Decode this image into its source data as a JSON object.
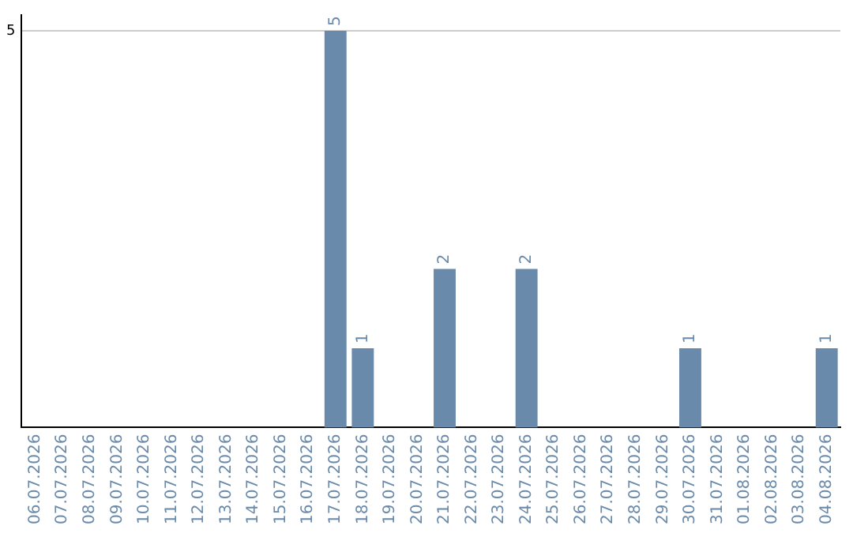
{
  "chart_data": {
    "type": "bar",
    "categories": [
      "06.07.2026",
      "07.07.2026",
      "08.07.2026",
      "09.07.2026",
      "10.07.2026",
      "11.07.2026",
      "12.07.2026",
      "13.07.2026",
      "14.07.2026",
      "15.07.2026",
      "16.07.2026",
      "17.07.2026",
      "18.07.2026",
      "19.07.2026",
      "20.07.2026",
      "21.07.2026",
      "22.07.2026",
      "23.07.2026",
      "24.07.2026",
      "25.07.2026",
      "26.07.2026",
      "27.07.2026",
      "28.07.2026",
      "29.07.2026",
      "30.07.2026",
      "31.07.2026",
      "01.08.2026",
      "02.08.2026",
      "03.08.2026",
      "04.08.2026"
    ],
    "values": [
      0,
      0,
      0,
      0,
      0,
      0,
      0,
      0,
      0,
      0,
      0,
      5,
      1,
      0,
      0,
      2,
      0,
      0,
      2,
      0,
      0,
      0,
      0,
      0,
      1,
      0,
      0,
      0,
      0,
      1
    ],
    "value_labels": [
      null,
      null,
      null,
      null,
      null,
      null,
      null,
      null,
      null,
      null,
      null,
      "5",
      "1",
      null,
      null,
      "2",
      null,
      null,
      "2",
      null,
      null,
      null,
      null,
      null,
      "1",
      null,
      null,
      null,
      null,
      "1"
    ],
    "color": "#6a8aab",
    "ylim": [
      0,
      5.2
    ],
    "yticks": [
      5
    ],
    "grid": "y",
    "legend": false
  }
}
